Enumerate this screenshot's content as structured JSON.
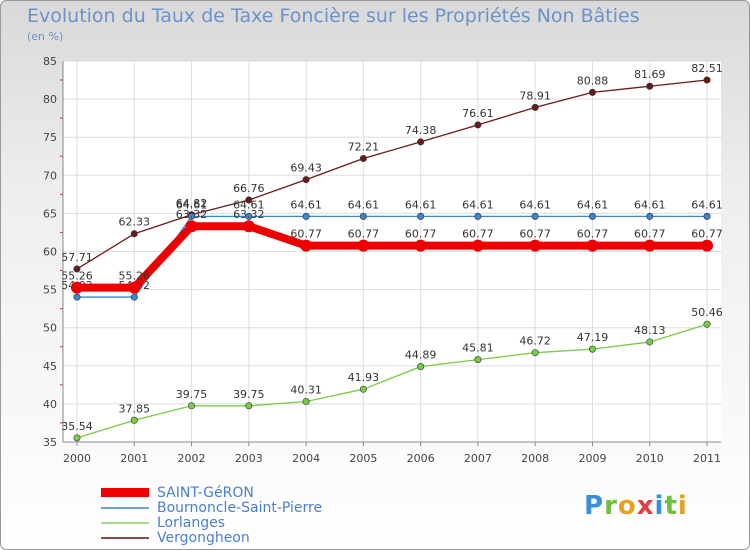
{
  "header": {
    "title": "Evolution du Taux de Taxe Foncière sur les Propriétés Non Bâties",
    "subtitle": "(en %)"
  },
  "logo": {
    "text": "Proxiti"
  },
  "chart_data": {
    "type": "line",
    "title": "Evolution du Taux de Taxe Foncière sur les Propriétés Non Bâties",
    "ylabel": "(en %)",
    "xlabel": "",
    "ylim": [
      35,
      85
    ],
    "yticks": [
      "35",
      "40",
      "45",
      "50",
      "55",
      "60",
      "65",
      "70",
      "75",
      "80",
      "85"
    ],
    "categories": [
      "2000",
      "2001",
      "2002",
      "2003",
      "2004",
      "2005",
      "2006",
      "2007",
      "2008",
      "2009",
      "2010",
      "2011"
    ],
    "grid": true,
    "legend_position": "bottom-left",
    "series": [
      {
        "name": "Vergongheon",
        "color": "#6b1a1a",
        "legend_color": "#8b4a4a",
        "values": [
          57.71,
          62.33,
          64.82,
          66.76,
          69.43,
          72.21,
          74.38,
          76.61,
          78.91,
          80.88,
          81.69,
          82.51
        ],
        "labels": [
          "57.71",
          "62.33",
          "64.82",
          "66.76",
          "69.43",
          "72.21",
          "74.38",
          "76.61",
          "78.91",
          "80.88",
          "81.69",
          "82.51"
        ]
      },
      {
        "name": "Bournoncle-Saint-Pierre",
        "color": "#3a84d0",
        "legend_color": "#6fa0cf",
        "values": [
          54.02,
          54.02,
          64.61,
          64.61,
          64.61,
          64.61,
          64.61,
          64.61,
          64.61,
          64.61,
          64.61,
          64.61
        ],
        "labels": [
          "54.02",
          "54.02",
          "64.61",
          "64.61",
          "64.61",
          "64.61",
          "64.61",
          "64.61",
          "64.61",
          "64.61",
          "64.61",
          "64.61"
        ]
      },
      {
        "name": "Lorlanges",
        "color": "#77cc44",
        "legend_color": "#a6d98a",
        "values": [
          35.54,
          37.85,
          39.75,
          39.75,
          40.31,
          41.93,
          44.89,
          45.81,
          46.72,
          47.19,
          48.13,
          50.46
        ],
        "labels": [
          "35.54",
          "37.85",
          "39.75",
          "39.75",
          "40.31",
          "41.93",
          "44.89",
          "45.81",
          "46.72",
          "47.19",
          "48.13",
          "50.46"
        ]
      },
      {
        "name": "SAINT-GéRON",
        "color": "#ee0000",
        "legend_color": "#ee0000",
        "values": [
          55.26,
          55.26,
          63.32,
          63.32,
          60.77,
          60.77,
          60.77,
          60.77,
          60.77,
          60.77,
          60.77,
          60.77
        ],
        "labels": [
          "55.26",
          "55.26",
          "63.32",
          "63.32",
          "60.77",
          "60.77",
          "60.77",
          "60.77",
          "60.77",
          "60.77",
          "60.77",
          "60.77"
        ]
      }
    ],
    "legend_order": [
      "SAINT-GéRON",
      "Bournoncle-Saint-Pierre",
      "Lorlanges",
      "Vergongheon"
    ]
  }
}
